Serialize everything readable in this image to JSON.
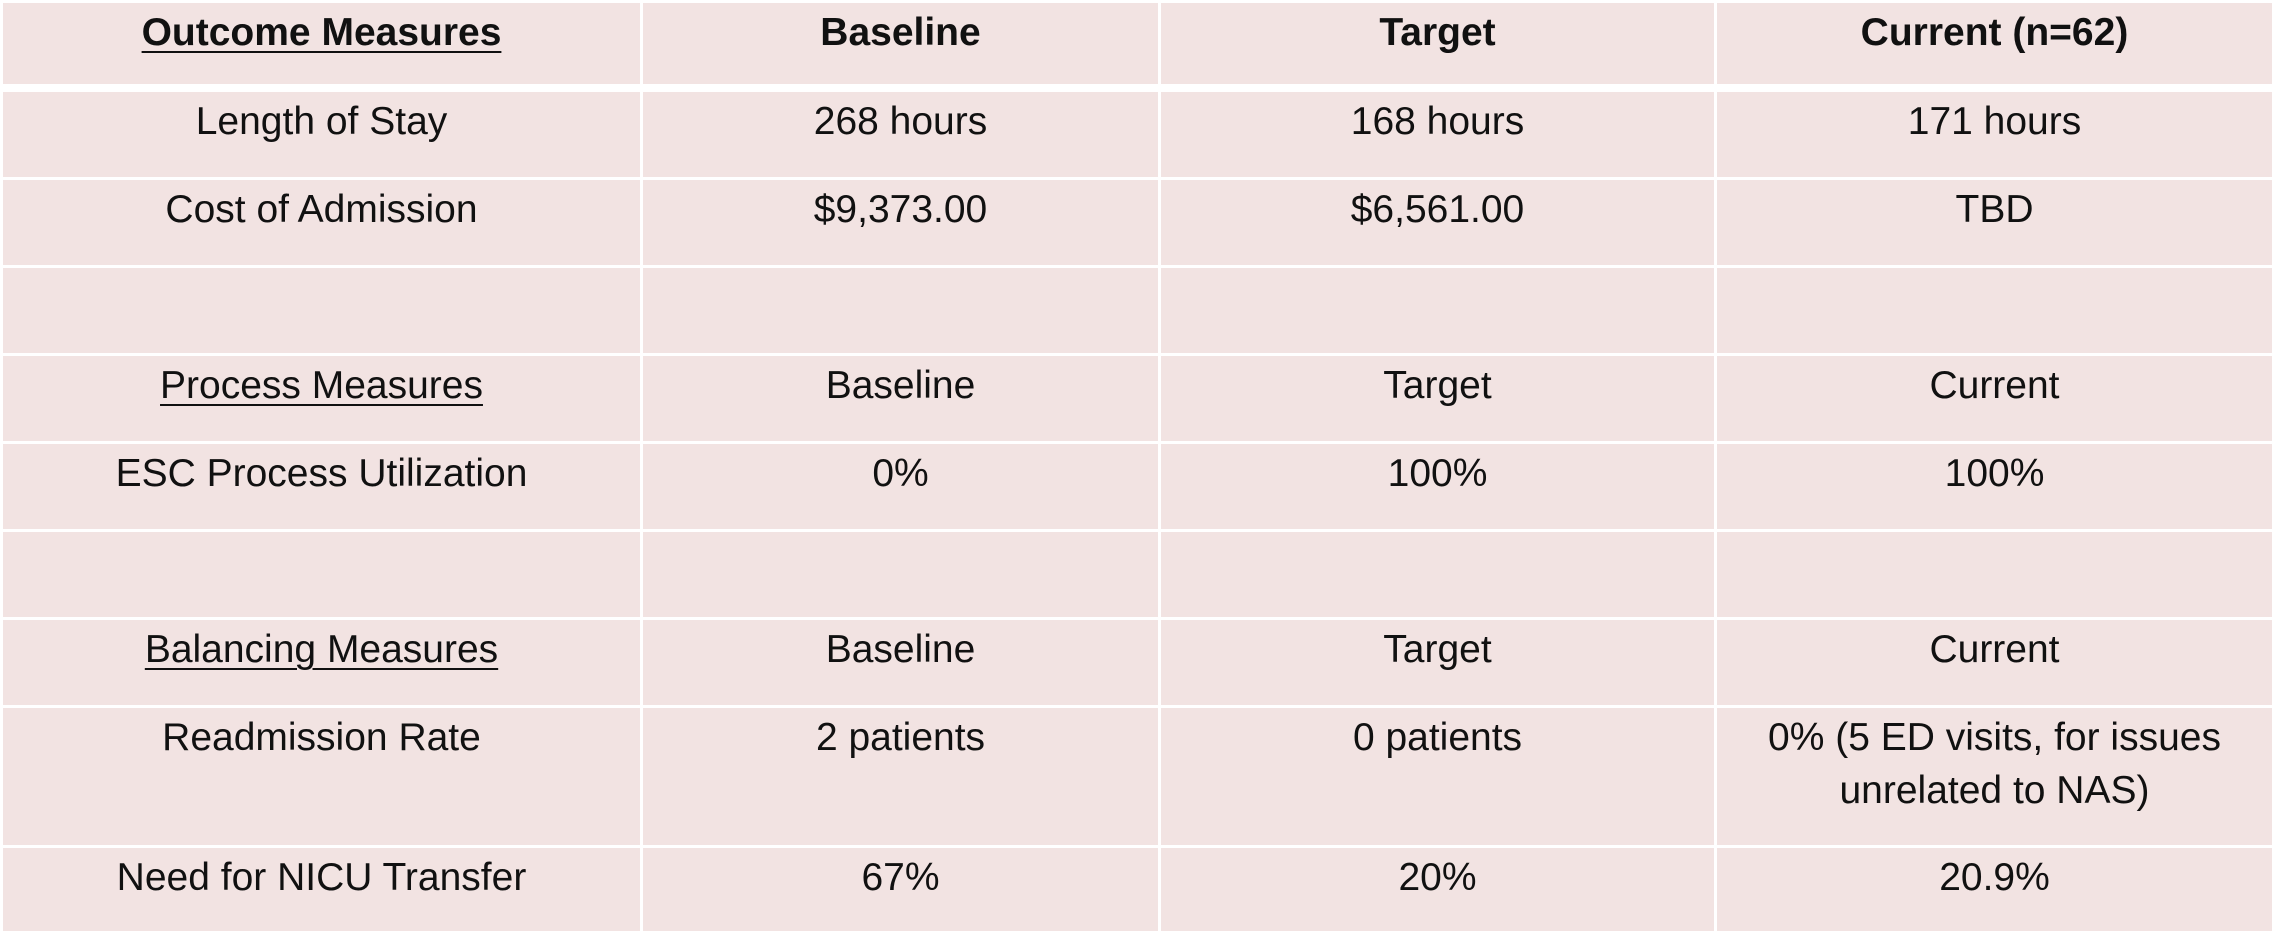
{
  "outcome": {
    "header": [
      "Outcome Measures",
      "Baseline",
      "Target",
      "Current (n=62)"
    ],
    "rows": [
      [
        "Length of Stay",
        "268 hours",
        "168 hours",
        "171 hours"
      ],
      [
        "Cost of Admission",
        "$9,373.00",
        "$6,561.00",
        "TBD"
      ]
    ]
  },
  "process": {
    "header": [
      "Process Measures",
      "Baseline",
      "Target",
      "Current"
    ],
    "rows": [
      [
        "ESC Process Utilization",
        "0%",
        "100%",
        "100%"
      ]
    ]
  },
  "balancing": {
    "header": [
      "Balancing Measures",
      "Baseline",
      "Target",
      "Current"
    ],
    "rows": [
      [
        "Readmission Rate",
        "2 patients",
        "0 patients",
        "0% (5 ED visits, for issues unrelated to NAS)"
      ],
      [
        "Need for NICU Transfer",
        "67%",
        "20%",
        "20.9%"
      ]
    ]
  },
  "colors": {
    "cell_background": "#f2e3e2",
    "grid_lines": "#ffffff",
    "text": "#111111"
  }
}
